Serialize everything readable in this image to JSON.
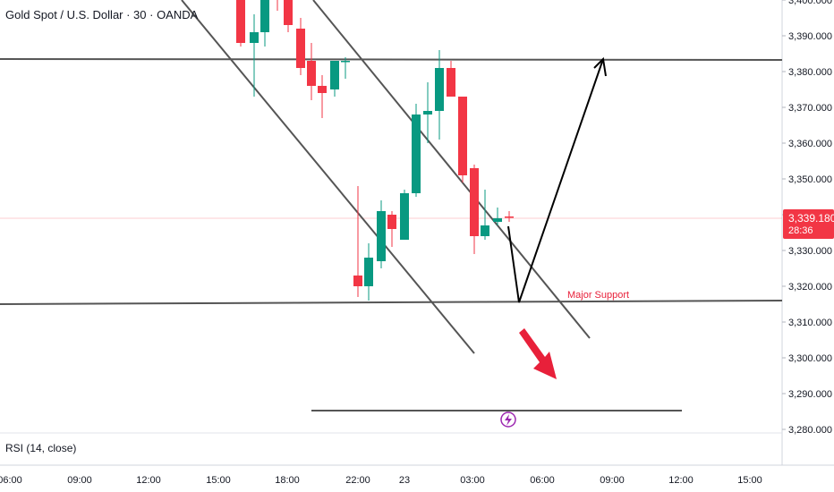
{
  "header": {
    "title": "Gold Spot / U.S. Dollar · 30 · OANDA"
  },
  "indicator": {
    "label": "RSI (14, close)"
  },
  "last_price": {
    "value": "3,339.180",
    "countdown": "28:36",
    "color": "#f23645"
  },
  "annotation": {
    "major_support": "Major Support"
  },
  "colors": {
    "up": "#089981",
    "down": "#f23645",
    "lines": "#555555",
    "arrow": "#000000",
    "down_arrow": "#e8203a",
    "flash": "#9c27b0"
  },
  "chart_data": {
    "type": "candlestick",
    "title": "Gold Spot / U.S. Dollar · 30 · OANDA",
    "y_tick_labels": [
      "3,280.000",
      "3,290.000",
      "3,300.000",
      "3,310.000",
      "3,320.000",
      "3,330.000",
      "3,340.000",
      "3,350.000",
      "3,360.000",
      "3,370.000",
      "3,380.000",
      "3,390.000",
      "3,400.000"
    ],
    "x_tick_labels": [
      "06:00",
      "09:00",
      "12:00",
      "15:00",
      "18:00",
      "22:00",
      "23",
      "03:00",
      "06:00",
      "09:00",
      "12:00",
      "15:00"
    ],
    "candles": [
      {
        "x": "16:00",
        "o": 3404,
        "h": 3412,
        "l": 3387,
        "c": 3388
      },
      {
        "x": "16:30",
        "o": 3388,
        "h": 3396,
        "l": 3373,
        "c": 3391
      },
      {
        "x": "17:00",
        "o": 3391,
        "h": 3412,
        "l": 3387,
        "c": 3410
      },
      {
        "x": "17:30",
        "o": 3404,
        "h": 3407,
        "l": 3397,
        "c": 3400
      },
      {
        "x": "18:00",
        "o": 3412,
        "h": 3414,
        "l": 3391,
        "c": 3393
      },
      {
        "x": "18:30",
        "o": 3392,
        "h": 3395,
        "l": 3379,
        "c": 3381
      },
      {
        "x": "19:00",
        "o": 3383,
        "h": 3388,
        "l": 3372,
        "c": 3376
      },
      {
        "x": "19:30",
        "o": 3376,
        "h": 3379,
        "l": 3367,
        "c": 3374
      },
      {
        "x": "20:00",
        "o": 3375,
        "h": 3383,
        "l": 3373,
        "c": 3383
      },
      {
        "x": "20:30",
        "o": 3383,
        "h": 3384,
        "l": 3378,
        "c": 3383
      },
      {
        "x": "22:00",
        "o": 3323,
        "h": 3348,
        "l": 3317,
        "c": 3320
      },
      {
        "x": "22:30",
        "o": 3320,
        "h": 3332,
        "l": 3316,
        "c": 3328
      },
      {
        "x": "23:00",
        "o": 3327,
        "h": 3344,
        "l": 3325,
        "c": 3341
      },
      {
        "x": "23:30",
        "o": 3340,
        "h": 3341,
        "l": 3331,
        "c": 3336
      },
      {
        "x": "00:00",
        "o": 3333,
        "h": 3347,
        "l": 3333,
        "c": 3346
      },
      {
        "x": "00:30",
        "o": 3346,
        "h": 3371,
        "l": 3345,
        "c": 3368
      },
      {
        "x": "01:00",
        "o": 3368,
        "h": 3377,
        "l": 3360,
        "c": 3369
      },
      {
        "x": "01:30",
        "o": 3369,
        "h": 3386,
        "l": 3361,
        "c": 3381
      },
      {
        "x": "02:00",
        "o": 3381,
        "h": 3383,
        "l": 3373,
        "c": 3373
      },
      {
        "x": "02:30",
        "o": 3373,
        "h": 3373,
        "l": 3349,
        "c": 3351
      },
      {
        "x": "03:00",
        "o": 3353,
        "h": 3354,
        "l": 3329,
        "c": 3334
      },
      {
        "x": "03:30",
        "o": 3334,
        "h": 3347,
        "l": 3333,
        "c": 3337
      },
      {
        "x": "04:00",
        "o": 3338,
        "h": 3342,
        "l": 3337,
        "c": 3339
      },
      {
        "x": "04:30",
        "o": 3339.5,
        "h": 3341,
        "l": 3338,
        "c": 3339.18
      }
    ],
    "horizontal_levels": [
      3383.5,
      3315.3,
      3287.3
    ],
    "ylim": [
      3280,
      3400
    ]
  }
}
